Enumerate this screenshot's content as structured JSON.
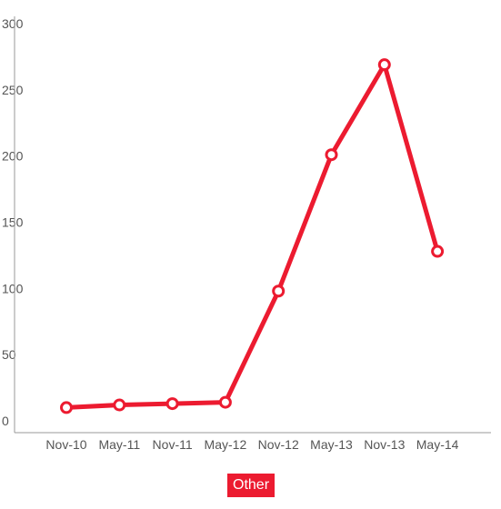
{
  "chart_data": {
    "type": "line",
    "title": "",
    "xlabel": "",
    "ylabel": "",
    "categories": [
      "Nov-10",
      "May-11",
      "Nov-11",
      "May-12",
      "Nov-12",
      "May-13",
      "Nov-13",
      "May-14"
    ],
    "y_ticks": [
      "0",
      "50",
      "100",
      "150",
      "200",
      "250",
      "300"
    ],
    "ylim": [
      0,
      300
    ],
    "grid": false,
    "legend_placement": "bottom-center",
    "series": [
      {
        "name": "Other",
        "color": "#ec1b30",
        "values": [
          10,
          12,
          13,
          14,
          98,
          201,
          269,
          128
        ]
      }
    ]
  }
}
